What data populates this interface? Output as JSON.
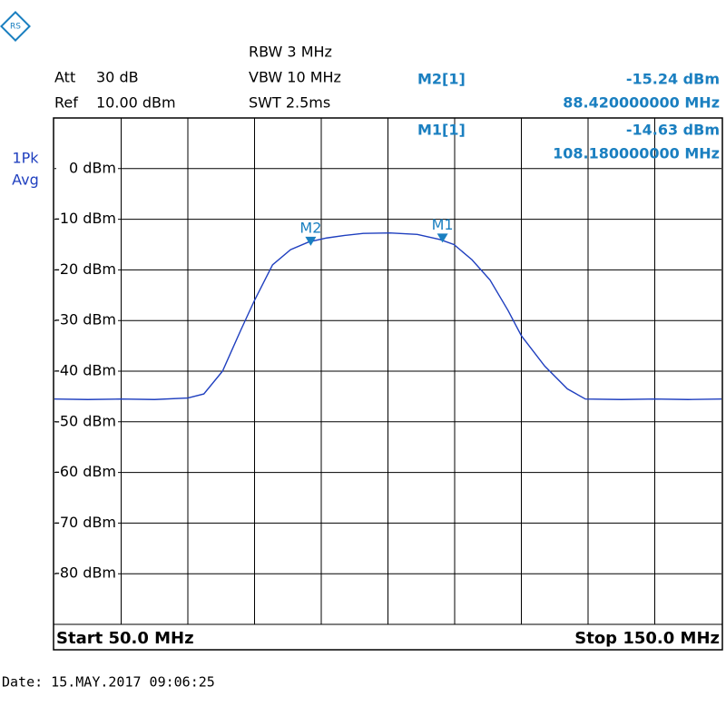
{
  "chart_data": {
    "type": "line",
    "settings": {
      "att_label": "Att",
      "att": "30 dB",
      "ref_label": "Ref",
      "ref": "10.00 dBm",
      "rbw": "RBW 3 MHz",
      "vbw": "VBW 10 MHz",
      "swt": "SWT 2.5ms",
      "detector": "1Pk",
      "mode": "Avg"
    },
    "start_label": "Start 50.0 MHz",
    "stop_label": "Stop 150.0 MHz",
    "date": "Date: 15.MAY.2017  09:06:25",
    "xlim": [
      50,
      150
    ],
    "ylim": [
      -90,
      10
    ],
    "yticks": [
      {
        "value": 0,
        "label": "0 dBm"
      },
      {
        "value": -10,
        "label": "-10 dBm"
      },
      {
        "value": -20,
        "label": "-20 dBm"
      },
      {
        "value": -30,
        "label": "-30 dBm"
      },
      {
        "value": -40,
        "label": "-40 dBm"
      },
      {
        "value": -50,
        "label": "-50 dBm"
      },
      {
        "value": -60,
        "label": "-60 dBm"
      },
      {
        "value": -70,
        "label": "-70 dBm"
      },
      {
        "value": -80,
        "label": "-80 dBm"
      }
    ],
    "grid": true,
    "series": [
      {
        "color": "#1f3fbf",
        "x": [
          50,
          55,
          60,
          65,
          70,
          72.4,
          75.2,
          77.9,
          80,
          82.7,
          85.4,
          88.1,
          90.8,
          93.5,
          96.3,
          100.3,
          104.4,
          107.8,
          109.9,
          112.6,
          115.3,
          118,
          120,
          123.5,
          126.9,
          129.6,
          135,
          140,
          145,
          150
        ],
        "values": [
          -45.5,
          -45.6,
          -45.5,
          -45.6,
          -45.3,
          -44.5,
          -40,
          -32,
          -26,
          -19,
          -16,
          -14.5,
          -13.7,
          -13.2,
          -12.8,
          -12.7,
          -13,
          -14,
          -15,
          -18,
          -22,
          -28,
          -33,
          -39,
          -43.5,
          -45.5,
          -45.6,
          -45.5,
          -45.6,
          -45.5
        ]
      }
    ],
    "markers": [
      {
        "name": "M2",
        "x": 88.42,
        "y": -15.24,
        "label": "M2[1]",
        "y_label": "-15.24 dBm",
        "x_label": "88.420000000 MHz"
      },
      {
        "name": "M1",
        "x": 108.18,
        "y": -14.63,
        "label": "M1[1]",
        "y_label": "-14.63 dBm",
        "x_label": "108.180000000 MHz"
      }
    ]
  }
}
